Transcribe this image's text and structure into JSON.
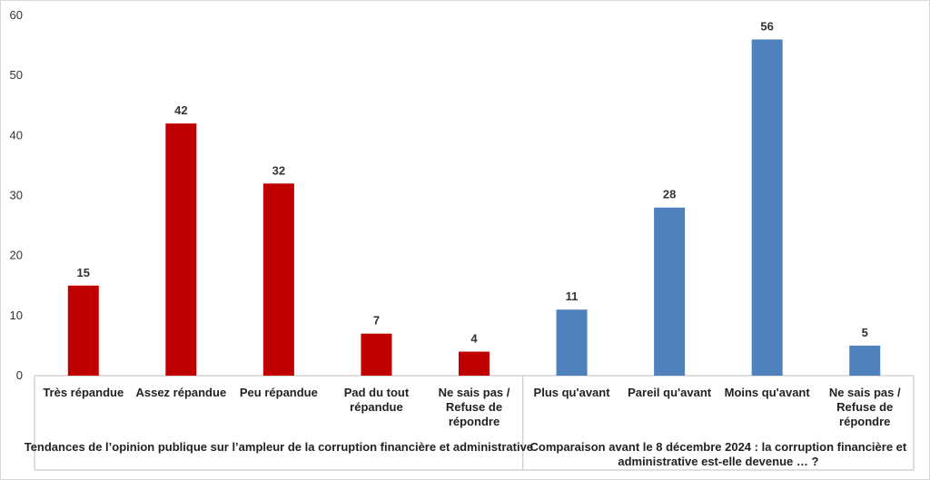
{
  "chart_data": {
    "type": "bar",
    "ylim": [
      0,
      60
    ],
    "yticks": [
      0,
      10,
      20,
      30,
      40,
      50,
      60
    ],
    "grid": false,
    "groups": [
      {
        "label": "Tendances de l’opinion publique sur l’ampleur de la corruption financière et administrative",
        "color": "#C00000",
        "categories": [
          "Très répandue",
          "Assez répandue",
          "Peu répandue",
          "Pad du tout\nrépandue",
          "Ne sais pas /\nRefuse de\nrépondre"
        ],
        "values": [
          15,
          42,
          32,
          7,
          4
        ]
      },
      {
        "label": "Comparaison avant le 8 décembre 2024 : la corruption financière et\nadministrative est-elle devenue … ?",
        "color": "#4F81BD",
        "categories": [
          "Plus qu'avant",
          "Pareil qu'avant",
          "Moins qu'avant",
          "Ne sais pas /\nRefuse de\nrépondre"
        ],
        "values": [
          11,
          28,
          56,
          5
        ]
      }
    ]
  }
}
